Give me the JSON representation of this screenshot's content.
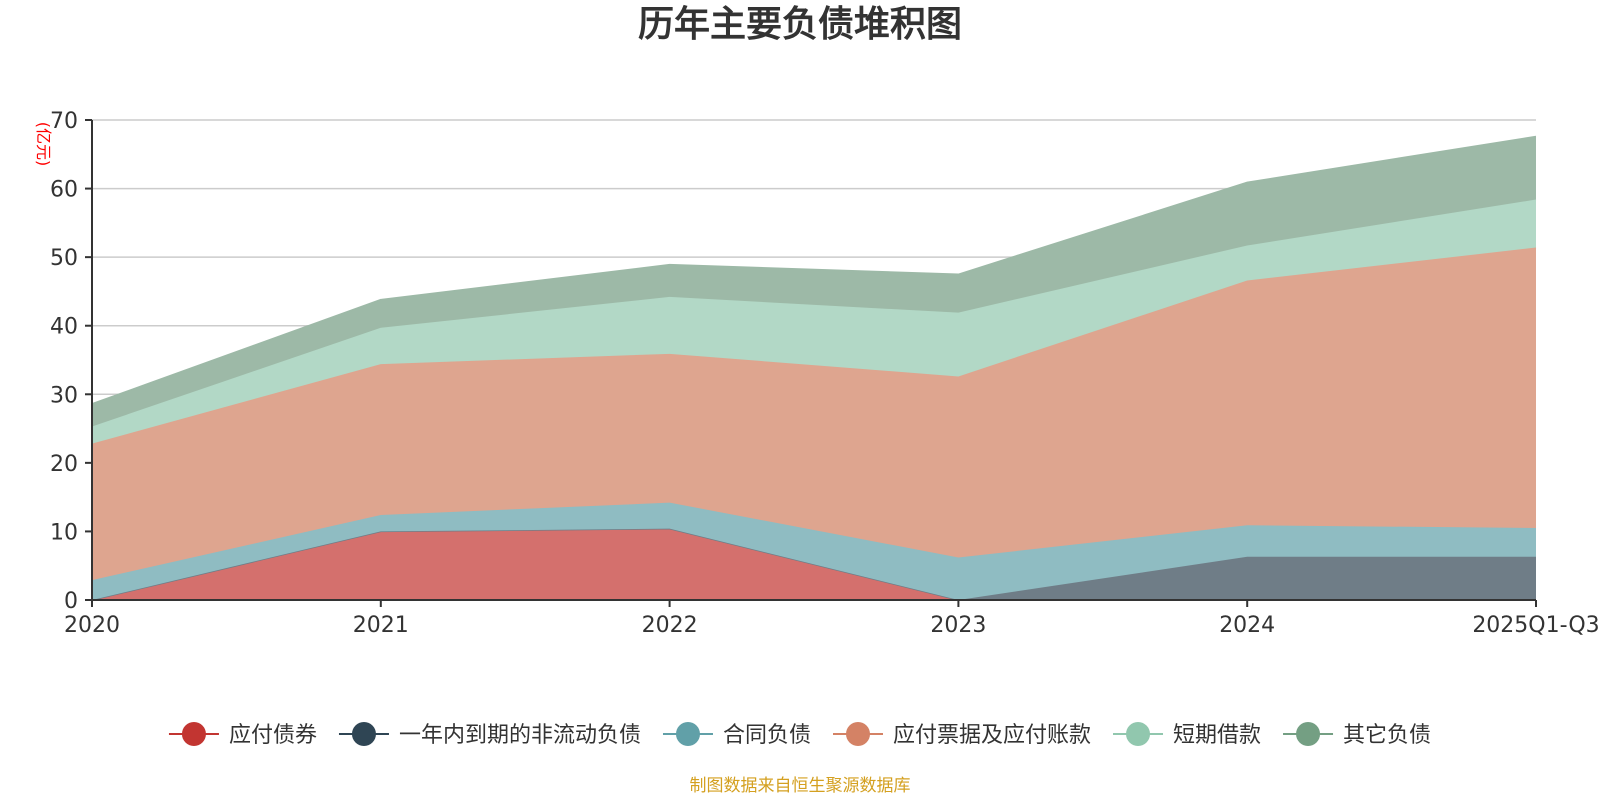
{
  "chart_data": {
    "type": "area",
    "stacked": true,
    "title": "历年主要负债堆积图",
    "ylabel": "(亿元)",
    "xlabel": "",
    "categories": [
      "2020",
      "2021",
      "2022",
      "2023",
      "2024",
      "2025Q1-Q3"
    ],
    "ylim": [
      0,
      70
    ],
    "yticks": [
      0,
      10,
      20,
      30,
      40,
      50,
      60,
      70
    ],
    "grid": true,
    "legend_position": "bottom",
    "series": [
      {
        "name": "应付债券",
        "color": "#c23531",
        "fill": "#d4706d",
        "values": [
          0,
          10.0,
          10.4,
          0,
          0,
          0
        ]
      },
      {
        "name": "一年内到期的非流动负债",
        "color": "#2f4554",
        "fill": "#6f7d87",
        "values": [
          0,
          0,
          0,
          0,
          6.3,
          6.3
        ]
      },
      {
        "name": "合同负债",
        "color": "#61a0a8",
        "fill": "#8fbcc2",
        "values": [
          2.9,
          2.4,
          3.8,
          6.2,
          4.6,
          4.2
        ]
      },
      {
        "name": "应付票据及应付账款",
        "color": "#d48265",
        "fill": "#dea58f",
        "values": [
          19.9,
          22.0,
          21.7,
          26.4,
          35.7,
          40.9
        ]
      },
      {
        "name": "短期借款",
        "color": "#91c7ae",
        "fill": "#b2d8c6",
        "values": [
          2.5,
          5.3,
          8.3,
          9.3,
          5.1,
          7.0
        ]
      },
      {
        "name": "其它负债",
        "color": "#749f83",
        "fill": "#9db9a7",
        "values": [
          3.3,
          4.1,
          4.7,
          5.6,
          9.2,
          9.2
        ]
      }
    ],
    "source_note": "制图数据来自恒生聚源数据库",
    "source_color": "#d4a020",
    "unit_color": "#ff0000"
  }
}
